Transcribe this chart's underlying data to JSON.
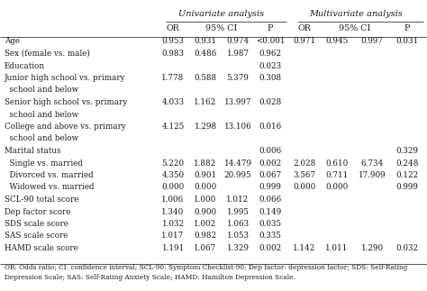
{
  "uni_header": "Univariate analysis",
  "multi_header": "Multivariate analysis",
  "rows": [
    {
      "label": "Age",
      "indent": false,
      "uni": [
        "0.953",
        "0.931",
        "0.974",
        "<0.001"
      ],
      "multi": [
        "0.971",
        "0.945",
        "0.997",
        "0.031"
      ]
    },
    {
      "label": "Sex (female vs. male)",
      "indent": false,
      "uni": [
        "0.983",
        "0.486",
        "1.987",
        "0.962"
      ],
      "multi": [
        "",
        "",
        "",
        ""
      ]
    },
    {
      "label": "Education",
      "indent": false,
      "uni": [
        "",
        "",
        "",
        "0.023"
      ],
      "multi": [
        "",
        "",
        "",
        ""
      ]
    },
    {
      "label": "Junior high school vs. primary",
      "indent": false,
      "uni": [
        "1.778",
        "0.588",
        "5.379",
        "0.308"
      ],
      "multi": [
        "",
        "",
        "",
        ""
      ]
    },
    {
      "label": "  school and below",
      "indent": true,
      "uni": [
        "",
        "",
        "",
        ""
      ],
      "multi": [
        "",
        "",
        "",
        ""
      ]
    },
    {
      "label": "Senior high school vs. primary",
      "indent": false,
      "uni": [
        "4.033",
        "1.162",
        "13.997",
        "0.028"
      ],
      "multi": [
        "",
        "",
        "",
        ""
      ]
    },
    {
      "label": "  school and below",
      "indent": true,
      "uni": [
        "",
        "",
        "",
        ""
      ],
      "multi": [
        "",
        "",
        "",
        ""
      ]
    },
    {
      "label": "College and above vs. primary",
      "indent": false,
      "uni": [
        "4.125",
        "1.298",
        "13.106",
        "0.016"
      ],
      "multi": [
        "",
        "",
        "",
        ""
      ]
    },
    {
      "label": "  school and below",
      "indent": true,
      "uni": [
        "",
        "",
        "",
        ""
      ],
      "multi": [
        "",
        "",
        "",
        ""
      ]
    },
    {
      "label": "Marital status",
      "indent": false,
      "uni": [
        "",
        "",
        "",
        "0.006"
      ],
      "multi": [
        "",
        "",
        "",
        "0.329"
      ]
    },
    {
      "label": "  Single vs. married",
      "indent": true,
      "uni": [
        "5.220",
        "1.882",
        "14.479",
        "0.002"
      ],
      "multi": [
        "2.028",
        "0.610",
        "6.734",
        "0.248"
      ]
    },
    {
      "label": "  Divorced vs. married",
      "indent": true,
      "uni": [
        "4.350",
        "0.901",
        "20.995",
        "0.067"
      ],
      "multi": [
        "3.567",
        "0.711",
        "17.909",
        "0.122"
      ]
    },
    {
      "label": "  Widowed vs. married",
      "indent": true,
      "uni": [
        "0.000",
        "0.000",
        "",
        "0.999"
      ],
      "multi": [
        "0.000",
        "0.000",
        "",
        "0.999"
      ]
    },
    {
      "label": "SCL-90 total score",
      "indent": false,
      "uni": [
        "1.006",
        "1.000",
        "1.012",
        "0.066"
      ],
      "multi": [
        "",
        "",
        "",
        ""
      ]
    },
    {
      "label": "Dep factor score",
      "indent": false,
      "uni": [
        "1.340",
        "0.900",
        "1.995",
        "0.149"
      ],
      "multi": [
        "",
        "",
        "",
        ""
      ]
    },
    {
      "label": "SDS scale score",
      "indent": false,
      "uni": [
        "1.032",
        "1.002",
        "1.063",
        "0.035"
      ],
      "multi": [
        "",
        "",
        "",
        ""
      ]
    },
    {
      "label": "SAS scale score",
      "indent": false,
      "uni": [
        "1.017",
        "0.982",
        "1.053",
        "0.335"
      ],
      "multi": [
        "",
        "",
        "",
        ""
      ]
    },
    {
      "label": "HAMD scale score",
      "indent": false,
      "uni": [
        "1.191",
        "1.067",
        "1.329",
        "0.002"
      ],
      "multi": [
        "1.142",
        "1.011",
        "1.290",
        "0.032"
      ]
    }
  ],
  "footnote1": "OR: Odds ratio; CI: confidence interval; SCL-90: Symptom Checklist-90; Dep factor: depression factor; SDS: Self-Rating",
  "footnote2": "Depression Scale; SAS: Self-Rating Anxiety Scale; HAMD: Hamilton Depression Scale.",
  "bg_color": "#ffffff",
  "text_color": "#1a1a1a",
  "line_color": "#555555"
}
